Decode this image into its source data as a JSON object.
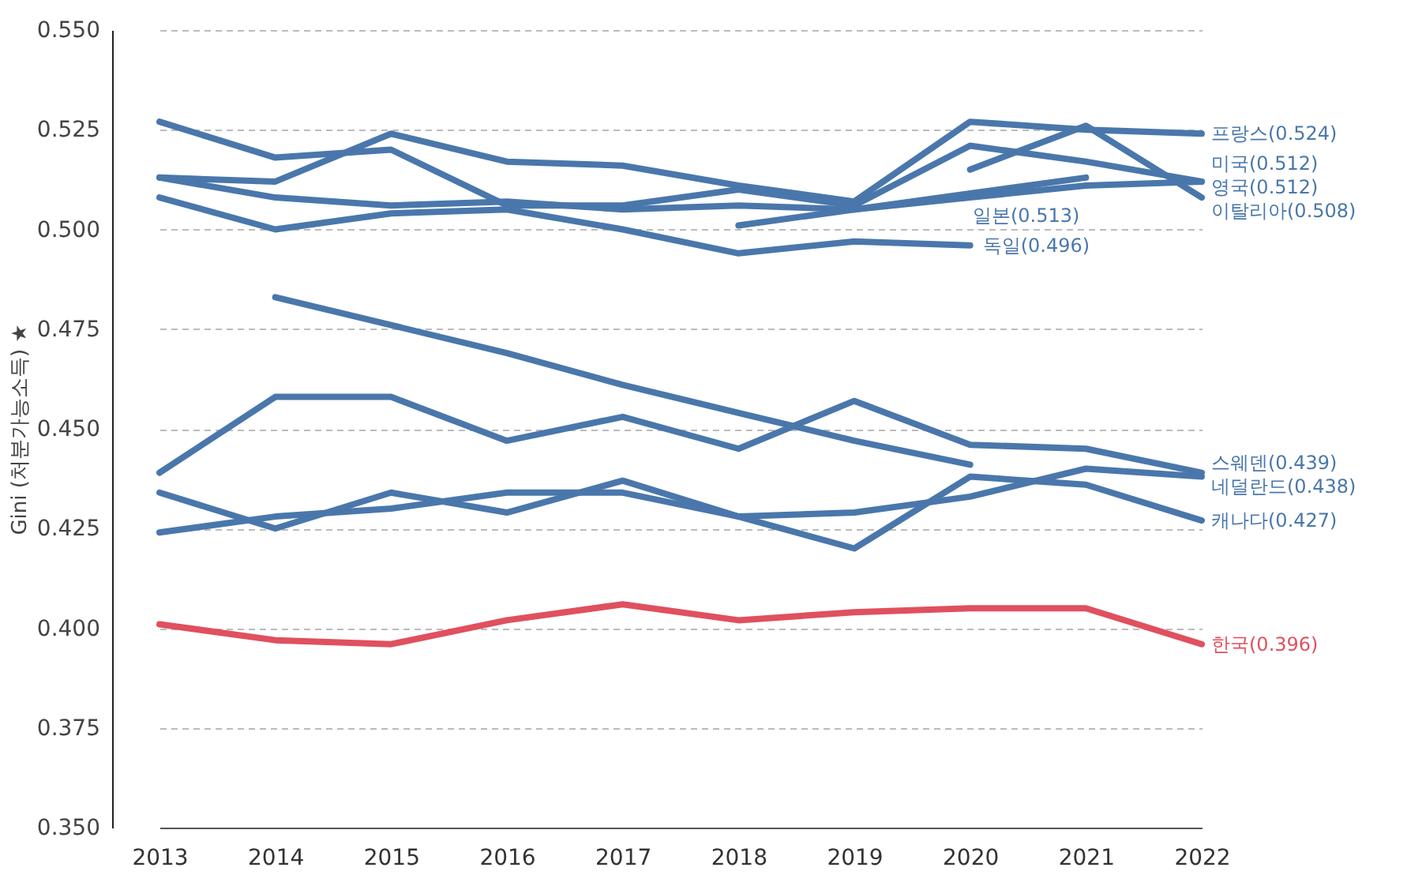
{
  "chart_data": {
    "type": "line",
    "ylabel": "Gini (처분가능소득) ★",
    "categories": [
      "2013",
      "2014",
      "2015",
      "2016",
      "2017",
      "2018",
      "2019",
      "2020",
      "2021",
      "2022"
    ],
    "ylim": [
      0.35,
      0.55
    ],
    "yticks": [
      {
        "value": 0.35,
        "label": "0.350"
      },
      {
        "value": 0.375,
        "label": "0.375"
      },
      {
        "value": 0.4,
        "label": "0.400"
      },
      {
        "value": 0.425,
        "label": "0.425"
      },
      {
        "value": 0.45,
        "label": "0.450"
      },
      {
        "value": 0.475,
        "label": "0.475"
      },
      {
        "value": 0.5,
        "label": "0.500"
      },
      {
        "value": 0.525,
        "label": "0.525"
      },
      {
        "value": 0.55,
        "label": "0.550"
      }
    ],
    "grid": "y",
    "marker": "none",
    "line_style": "solid",
    "series": [
      {
        "name": "프랑스(0.524)",
        "color": "#4a77ab",
        "values": [
          0.513,
          0.512,
          0.524,
          0.517,
          0.516,
          0.511,
          0.507,
          0.527,
          0.525,
          0.524
        ]
      },
      {
        "name": "미국(0.512)",
        "color": "#4a77ab",
        "values": [
          0.527,
          0.518,
          0.52,
          0.506,
          0.506,
          0.51,
          0.506,
          0.521,
          0.517,
          0.512
        ]
      },
      {
        "name": "영국(0.512)",
        "color": "#4a77ab",
        "values": [
          0.513,
          0.508,
          0.506,
          0.507,
          0.505,
          0.506,
          0.505,
          0.508,
          0.511,
          0.512
        ]
      },
      {
        "name": "이탈리아(0.508)",
        "color": "#4a77ab",
        "values": [
          null,
          null,
          null,
          null,
          null,
          null,
          null,
          0.515,
          0.526,
          0.508
        ]
      },
      {
        "name": "일본(0.513)",
        "color": "#4a77ab",
        "values": [
          null,
          null,
          null,
          null,
          null,
          0.501,
          0.505,
          0.509,
          0.513,
          null
        ]
      },
      {
        "name": "독일(0.496)",
        "color": "#4a77ab",
        "values": [
          0.508,
          0.5,
          0.504,
          0.505,
          0.5,
          0.494,
          0.497,
          0.496,
          null,
          null
        ]
      },
      {
        "color": "#4a77ab",
        "values": [
          null,
          0.483,
          0.476,
          0.469,
          0.461,
          0.454,
          0.447,
          0.441,
          null,
          null
        ]
      },
      {
        "name": "스웨덴(0.439)",
        "color": "#4a77ab",
        "values": [
          0.439,
          0.458,
          0.458,
          0.447,
          0.453,
          0.445,
          0.457,
          0.446,
          0.445,
          0.439
        ]
      },
      {
        "name": "네덜란드(0.438)",
        "color": "#4a77ab",
        "values": [
          0.424,
          0.428,
          0.43,
          0.434,
          0.434,
          0.428,
          0.429,
          0.433,
          0.44,
          0.438
        ]
      },
      {
        "name": "캐나다(0.427)",
        "color": "#4a77ab",
        "values": [
          0.434,
          0.425,
          0.434,
          0.429,
          0.437,
          0.428,
          0.42,
          0.438,
          0.436,
          0.427
        ]
      },
      {
        "name": "한국(0.396)",
        "color": "#e0505e",
        "values": [
          0.401,
          0.397,
          0.396,
          0.402,
          0.406,
          0.402,
          0.404,
          0.405,
          0.405,
          0.396
        ]
      }
    ]
  }
}
